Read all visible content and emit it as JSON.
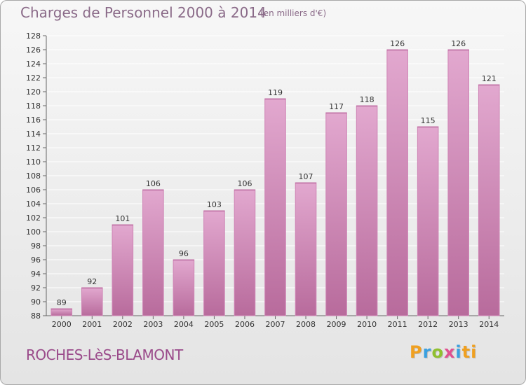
{
  "header": {
    "title": "Charges de Personnel 2000 à 2014",
    "subtitle": "(en milliers d'€)"
  },
  "footer": {
    "commune": "ROCHES-LèS-BLAMONT",
    "logo": [
      "P",
      "r",
      "o",
      "x",
      "i",
      "ti"
    ]
  },
  "colors": {
    "bar": "#cf86b6",
    "bar_light": "#e2a8cf",
    "bar_dark": "#b86b9c",
    "grid": "#ffffff"
  },
  "chart_data": {
    "type": "bar",
    "title": "Charges de Personnel 2000 à 2014",
    "subtitle": "(en milliers d'€)",
    "categories": [
      "2000",
      "2001",
      "2002",
      "2003",
      "2004",
      "2005",
      "2006",
      "2007",
      "2008",
      "2009",
      "2010",
      "2011",
      "2012",
      "2013",
      "2014"
    ],
    "values": [
      89,
      92,
      101,
      106,
      96,
      103,
      106,
      119,
      107,
      117,
      118,
      126,
      115,
      126,
      121
    ],
    "ylim": [
      88,
      128
    ],
    "yticks": [
      88,
      90,
      92,
      94,
      96,
      98,
      100,
      102,
      104,
      106,
      108,
      110,
      112,
      114,
      116,
      118,
      120,
      122,
      124,
      126,
      128
    ],
    "grid": true,
    "xlabel": "",
    "ylabel": ""
  }
}
